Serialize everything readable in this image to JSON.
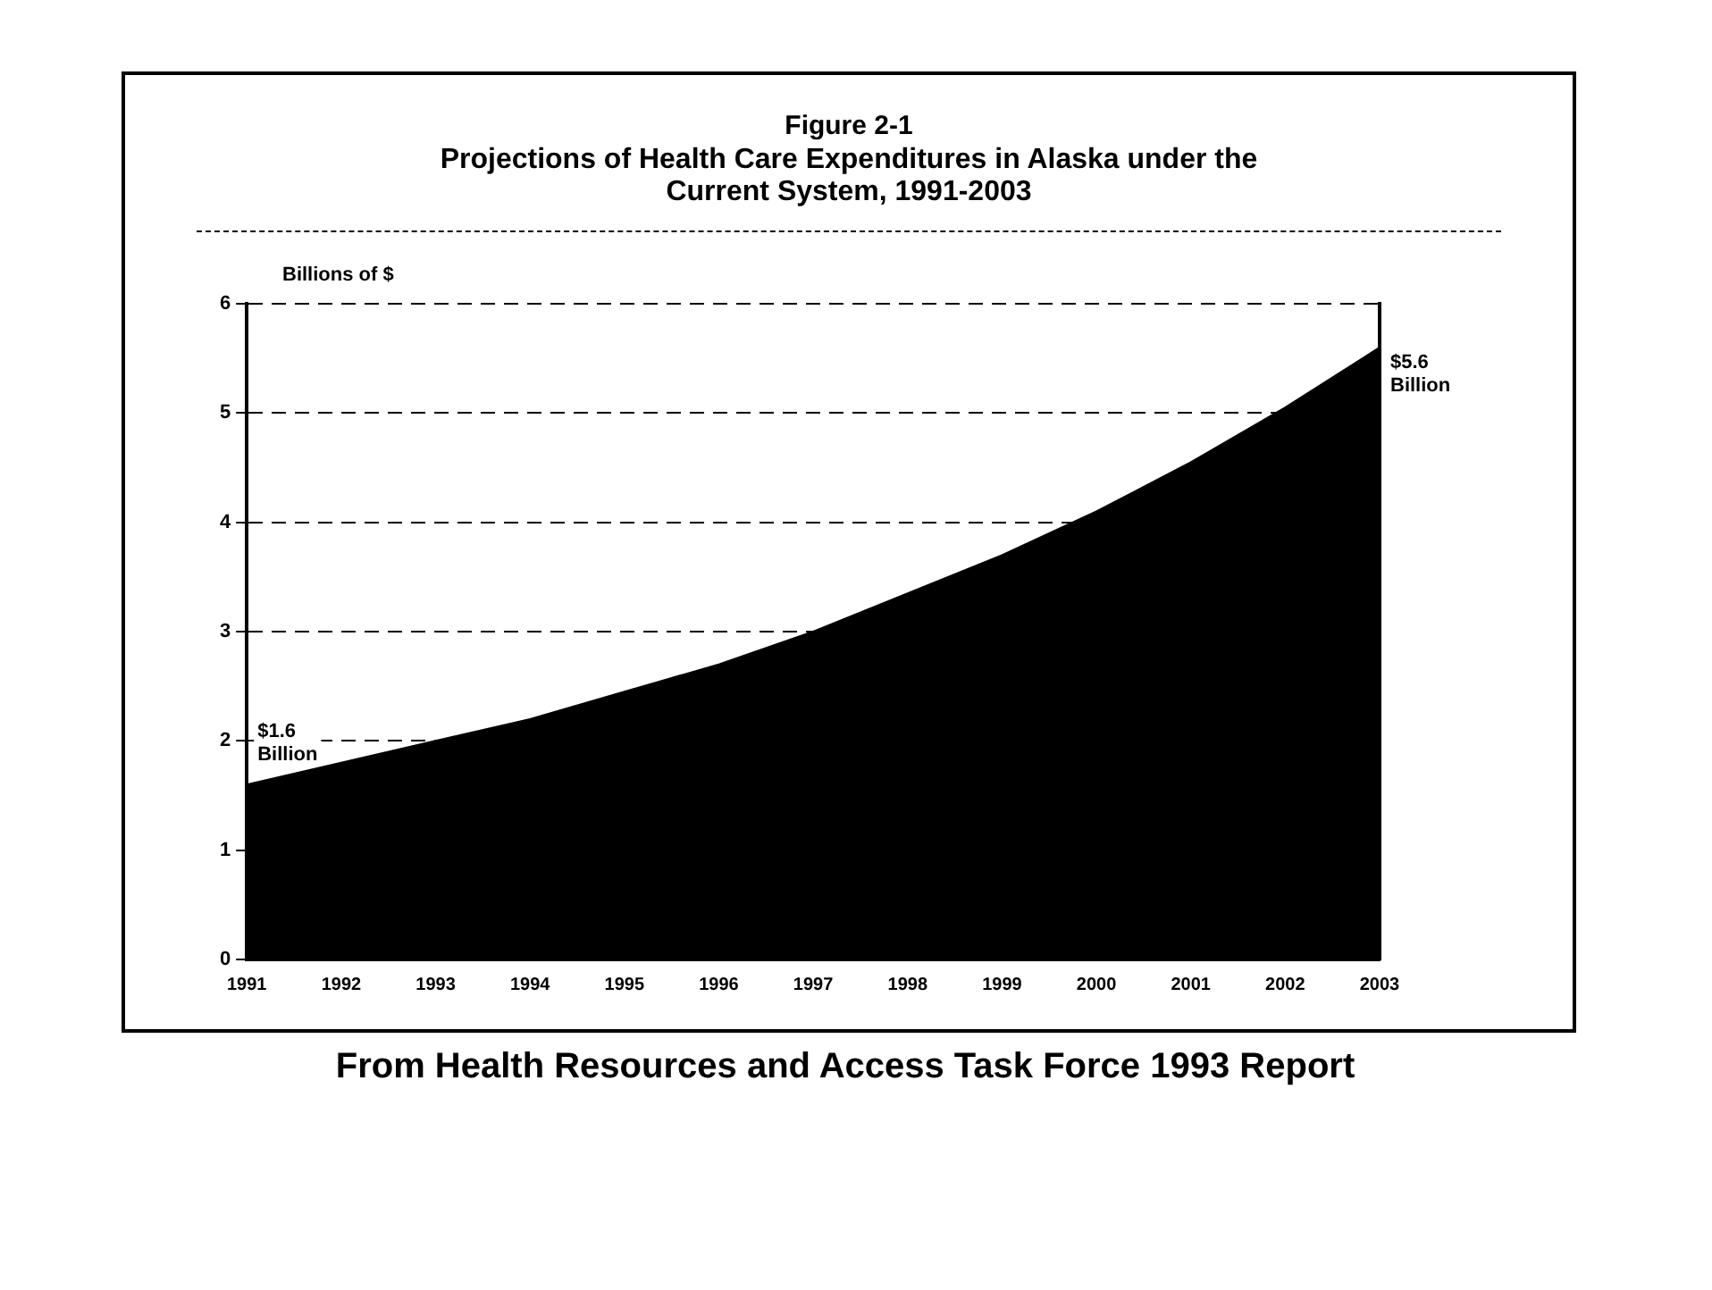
{
  "chart_data": {
    "type": "area",
    "title": "Figure 2-1",
    "subtitle": "Projections of Health Care Expenditures in Alaska under the Current System, 1991-2003",
    "ylabel": "Billions of $",
    "x": [
      1991,
      1992,
      1993,
      1994,
      1995,
      1996,
      1997,
      1998,
      1999,
      2000,
      2001,
      2002,
      2003
    ],
    "series": [
      {
        "color": "#000000",
        "values": [
          1.6,
          1.8,
          2.0,
          2.2,
          2.45,
          2.7,
          3.0,
          3.35,
          3.7,
          4.1,
          4.55,
          5.05,
          5.6
        ]
      }
    ],
    "xlim": [
      1991,
      2003
    ],
    "xticks": [
      1991,
      1992,
      1993,
      1994,
      1995,
      1996,
      1997,
      1998,
      1999,
      2000,
      2001,
      2002,
      2003
    ],
    "ylim": [
      0,
      6
    ],
    "yticks": [
      0,
      1,
      2,
      3,
      4,
      5,
      6
    ],
    "grid": "y",
    "line_style": "dashed",
    "annotations": [
      {
        "text": "$1.6 Billion",
        "x": 1991,
        "y": 1.6
      },
      {
        "text": "$5.6 Billion",
        "x": 2003,
        "y": 5.6
      },
      "From Health Resources and Access Task Force 1993 Report"
    ]
  }
}
